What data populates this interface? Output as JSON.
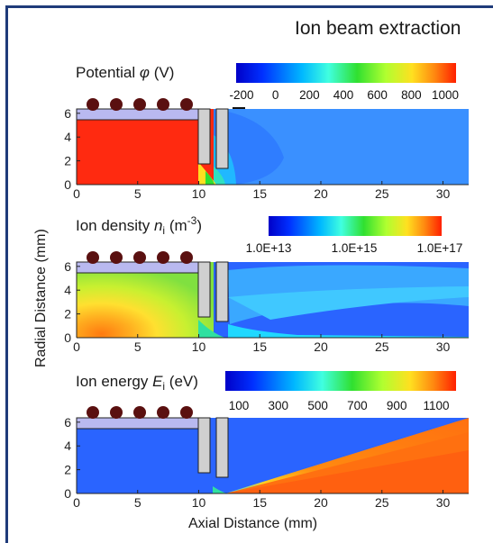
{
  "title": "Ion beam extraction",
  "ylabel": "Radial Distance (mm)",
  "xlabel": "Axial Distance (mm)",
  "x_ticks": [
    "0",
    "5",
    "10",
    "15",
    "20",
    "25",
    "30"
  ],
  "y_ticks": [
    "0",
    "2",
    "4",
    "6"
  ],
  "panels": [
    {
      "id": "potential",
      "title_prefix": "Potential ",
      "title_symbol": "φ",
      "title_suffix": " (V)",
      "colorbar_ticks": [
        "-200",
        "0",
        "200",
        "400",
        "600",
        "800",
        "1000"
      ]
    },
    {
      "id": "density",
      "title_prefix": "Ion density ",
      "title_symbol": "n",
      "title_sub": "i",
      "title_suffix_a": " (m",
      "title_sup": "-3",
      "title_suffix_b": ")",
      "colorbar_ticks": [
        "1.0E+13",
        "1.0E+15",
        "1.0E+17"
      ]
    },
    {
      "id": "energy",
      "title_prefix": "Ion energy ",
      "title_symbol": "E",
      "title_sub": "i",
      "title_suffix": " (eV)",
      "colorbar_ticks": [
        "100",
        "300",
        "500",
        "700",
        "900",
        "1100"
      ]
    }
  ],
  "colors": {
    "frame": "#1f3b7a",
    "plasma_chamber": "#b9b9f0",
    "coil": "#5a1010",
    "electrode": "#d0d0d0",
    "low": "#2060ff",
    "high": "#ff3a10"
  }
}
